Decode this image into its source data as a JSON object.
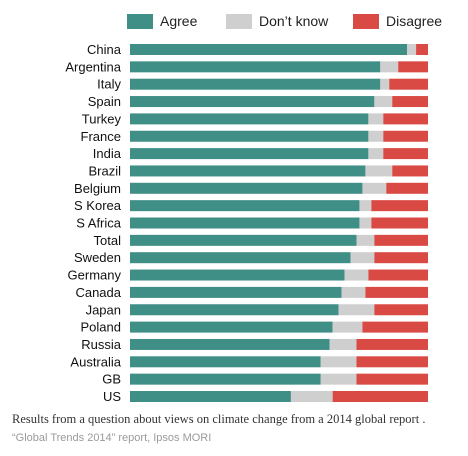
{
  "chart_data": {
    "type": "bar",
    "orientation": "horizontal",
    "stacked": true,
    "categories": [
      "China",
      "Argentina",
      "Italy",
      "Spain",
      "Turkey",
      "France",
      "India",
      "Brazil",
      "Belgium",
      "S Korea",
      "S Africa",
      "Total",
      "Sweden",
      "Germany",
      "Canada",
      "Japan",
      "Poland",
      "Russia",
      "Australia",
      "GB",
      "US"
    ],
    "series": [
      {
        "name": "Agree",
        "color": "#3f8f87",
        "values": [
          93,
          84,
          84,
          82,
          80,
          80,
          80,
          79,
          78,
          77,
          77,
          76,
          74,
          72,
          71,
          70,
          68,
          67,
          64,
          64,
          54
        ]
      },
      {
        "name": "Don’t know",
        "color": "#cfcfcf",
        "values": [
          3,
          6,
          3,
          6,
          5,
          5,
          5,
          9,
          8,
          4,
          4,
          6,
          8,
          8,
          8,
          12,
          10,
          9,
          12,
          12,
          14
        ]
      },
      {
        "name": "Disagree",
        "color": "#d94a45",
        "values": [
          4,
          10,
          13,
          12,
          15,
          15,
          15,
          12,
          14,
          19,
          19,
          18,
          18,
          20,
          21,
          18,
          22,
          24,
          24,
          24,
          32
        ]
      }
    ],
    "xlim": [
      0,
      100
    ],
    "legend_position": "top",
    "grid": false,
    "caption": "Results from a question about views on climate change from a 2014 global report .",
    "source": "“Global Trends 2014” report, Ipsos MORI"
  }
}
